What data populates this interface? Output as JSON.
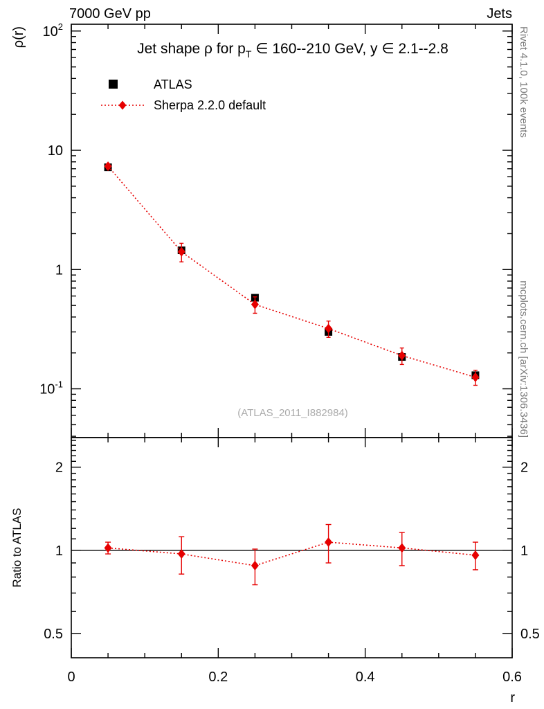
{
  "header": {
    "left": "7000 GeV pp",
    "right": "Jets"
  },
  "side": {
    "rivet": "Rivet 4.1.0, 100k events",
    "mcplots": "mcplots.cern.ch [arXiv:1306.3436]"
  },
  "watermark": "(ATLAS_2011_I882984)",
  "chart_data": {
    "type": "line",
    "title": "Jet shape ρ for p_T ∈ 160--210 GeV, y ∈ 2.1--2.8",
    "title_parts": {
      "pre": "Jet shape ρ for p",
      "sub": "T",
      "post": " ∈ 160--210 GeV, y ∈ 2.1--2.8"
    },
    "xlabel": "r",
    "ylabel": "ρ(r)",
    "x": [
      0.05,
      0.15,
      0.25,
      0.35,
      0.45,
      0.55
    ],
    "xlim": [
      0,
      0.6
    ],
    "xticks": [
      0,
      0.2,
      0.4,
      0.6
    ],
    "ylog": true,
    "ylim": [
      0.039,
      114
    ],
    "yticks": [
      {
        "v": 100,
        "label": "10",
        "exp": "2"
      },
      {
        "v": 10,
        "label": "10",
        "exp": ""
      },
      {
        "v": 1,
        "label": "1",
        "exp": ""
      },
      {
        "v": 0.1,
        "label": "10",
        "exp": "-1"
      }
    ],
    "series": [
      {
        "name": "ATLAS",
        "marker": "square",
        "color": "#000000",
        "line": "none",
        "values": [
          7.2,
          1.45,
          0.58,
          0.3,
          0.185,
          0.13
        ],
        "errors": [
          0.25,
          0.06,
          0.025,
          0.014,
          0.01,
          0.008
        ]
      },
      {
        "name": "Sherpa 2.2.0 default",
        "marker": "diamond",
        "color": "#e60000",
        "line": "dotted",
        "values": [
          7.35,
          1.41,
          0.51,
          0.32,
          0.19,
          0.125
        ],
        "errors": [
          0.35,
          0.25,
          0.08,
          0.05,
          0.03,
          0.018
        ]
      }
    ],
    "ratio": {
      "ylabel": "Ratio to ATLAS",
      "ylog": true,
      "ylim": [
        0.408,
        2.56
      ],
      "yticks": [
        {
          "v": 2,
          "label": "2"
        },
        {
          "v": 1,
          "label": "1"
        },
        {
          "v": 0.5,
          "label": "0.5"
        }
      ],
      "reference": 1,
      "values": [
        1.02,
        0.97,
        0.88,
        1.07,
        1.02,
        0.96
      ],
      "errors": [
        0.05,
        0.15,
        0.13,
        0.17,
        0.14,
        0.11
      ]
    },
    "legend_position": "top-left",
    "grid": false,
    "colors": {
      "atlas": "#000000",
      "sherpa": "#e60000",
      "frame": "#000000",
      "watermark": "#ababab",
      "side_text": "#7a7a7a"
    }
  }
}
